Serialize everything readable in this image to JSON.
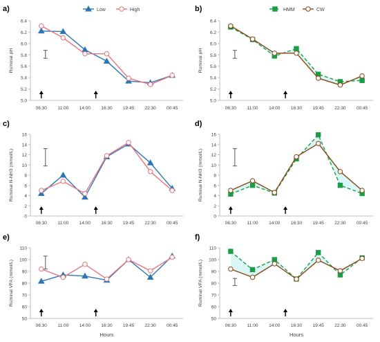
{
  "colors": {
    "low": "#2e75b6",
    "high": "#e8747c",
    "hmm": "#1a9e45",
    "hmm_fill": "#d6f5f5",
    "cw": "#8b4513",
    "axis": "#bfbfbf",
    "text": "#404040",
    "arrow": "#000000"
  },
  "x_axis_title": "Hours",
  "chart_data": [
    {
      "id": "a",
      "panel_label": "a)",
      "type": "line",
      "categories": [
        "06:30",
        "11:00",
        "14:00",
        "16:30",
        "19:45",
        "22:30",
        "00:45"
      ],
      "ylabel": "Ruminal pH",
      "xlabel": "",
      "ylim": [
        5.0,
        6.4
      ],
      "yticks": [
        "5.0",
        "5.2",
        "5.4",
        "5.6",
        "5.8",
        "6.0",
        "6.2",
        "6.4"
      ],
      "legend": "top-center",
      "series": [
        {
          "name": "Low",
          "style": "low",
          "values": [
            6.22,
            6.21,
            5.89,
            5.69,
            5.34,
            5.31,
            5.44
          ]
        },
        {
          "name": "High",
          "style": "high",
          "values": [
            6.31,
            6.1,
            5.82,
            5.82,
            5.39,
            5.28,
            5.44
          ]
        }
      ],
      "error_bar": {
        "center": 5.81,
        "low": 5.74,
        "high": 5.88
      },
      "arrows_at": [
        0,
        2.5
      ]
    },
    {
      "id": "b",
      "panel_label": "b)",
      "type": "line",
      "categories": [
        "06:30",
        "11:00",
        "14:00",
        "16:30",
        "19:45",
        "22:30",
        "00:45"
      ],
      "ylabel": "Ruminal pH",
      "xlabel": "",
      "ylim": [
        5.0,
        6.4
      ],
      "yticks": [
        "5.0",
        "5.2",
        "5.4",
        "5.6",
        "5.8",
        "6.0",
        "6.2",
        "6.4"
      ],
      "legend": "top-center",
      "series": [
        {
          "name": "HMM",
          "style": "hmm",
          "values": [
            6.29,
            6.07,
            5.78,
            5.91,
            5.46,
            5.33,
            5.35
          ]
        },
        {
          "name": "CW",
          "style": "cw",
          "values": [
            6.31,
            6.08,
            5.83,
            5.83,
            5.39,
            5.27,
            5.43
          ]
        }
      ],
      "error_bar": {
        "center": 5.81,
        "low": 5.74,
        "high": 5.88
      },
      "arrows_at": [
        0,
        2.5
      ]
    },
    {
      "id": "c",
      "panel_label": "c)",
      "type": "line",
      "categories": [
        "06:30",
        "11:00",
        "14:00",
        "16:30",
        "19:45",
        "22:30",
        "00:45"
      ],
      "ylabel": "Ruminal N-NH3 (mmol/L)",
      "xlabel": "",
      "ylim": [
        0,
        16
      ],
      "yticks": [
        "0",
        "2",
        "4",
        "6",
        "8",
        "10",
        "12",
        "14",
        "16"
      ],
      "legend": "none",
      "series": [
        {
          "style": "low",
          "values": [
            4.4,
            8.0,
            3.7,
            11.6,
            14.1,
            10.4,
            5.4
          ]
        },
        {
          "style": "high",
          "values": [
            5.0,
            6.8,
            4.4,
            11.8,
            14.4,
            8.7,
            5.0
          ]
        }
      ],
      "error_bar": {
        "center": 11.5,
        "low": 9.8,
        "high": 13.2
      },
      "arrows_at": [
        0,
        2.5
      ]
    },
    {
      "id": "d",
      "panel_label": "d)",
      "type": "line",
      "categories": [
        "06:30",
        "11:00",
        "14:00",
        "16:30",
        "19:45",
        "22:30",
        "00:45"
      ],
      "ylabel": "Ruminal N-NH3 (mmol/L)",
      "xlabel": "",
      "ylim": [
        0,
        16
      ],
      "yticks": [
        "0",
        "2",
        "4",
        "6",
        "8",
        "10",
        "12",
        "14",
        "16"
      ],
      "legend": "none",
      "series": [
        {
          "style": "hmm",
          "values": [
            4.3,
            6.0,
            4.5,
            11.2,
            15.9,
            6.0,
            4.4
          ]
        },
        {
          "style": "cw",
          "values": [
            5.0,
            6.9,
            4.6,
            11.6,
            14.2,
            8.7,
            5.0
          ]
        }
      ],
      "error_bar": {
        "center": 11.5,
        "low": 9.8,
        "high": 13.2
      },
      "arrows_at": [
        0,
        2.5
      ]
    },
    {
      "id": "e",
      "panel_label": "e)",
      "type": "line",
      "categories": [
        "06:30",
        "11:00",
        "14:00",
        "16:30",
        "19:45",
        "22:30",
        "00:45"
      ],
      "ylabel": "Ruminal VFA (mmol/L)",
      "xlabel": "Hours",
      "ylim": [
        50,
        110
      ],
      "yticks": [
        "50",
        "60",
        "70",
        "80",
        "90",
        "100",
        "110"
      ],
      "legend": "none",
      "series": [
        {
          "style": "low",
          "values": [
            81.6,
            87.0,
            86.0,
            82.5,
            100.0,
            85.0,
            103.0
          ]
        },
        {
          "style": "high",
          "values": [
            92.0,
            85.0,
            96.0,
            83.5,
            100.0,
            90.5,
            102.0
          ]
        }
      ],
      "error_bar": {
        "center": 98.0,
        "low": 92.0,
        "high": 103.0
      },
      "arrows_at": [
        0,
        2.5
      ]
    },
    {
      "id": "f",
      "panel_label": "f)",
      "type": "line",
      "categories": [
        "06:30",
        "11:00",
        "14:00",
        "16:30",
        "19:45",
        "22:30",
        "00:45"
      ],
      "ylabel": "Ruminal VFA (mmol/L)",
      "xlabel": "Hours",
      "ylim": [
        50,
        110
      ],
      "yticks": [
        "50",
        "60",
        "70",
        "80",
        "90",
        "100",
        "110"
      ],
      "legend": "none",
      "series": [
        {
          "style": "hmm",
          "values": [
            107.0,
            91.5,
            100.0,
            83.5,
            106.0,
            87.0,
            101.5
          ]
        },
        {
          "style": "cw",
          "values": [
            92.0,
            85.0,
            96.5,
            83.5,
            99.5,
            90.5,
            101.0
          ]
        }
      ],
      "error_bar": {
        "center": 81.0,
        "low": 78.0,
        "high": 84.0
      },
      "arrows_at": [
        0,
        2.5
      ]
    }
  ]
}
